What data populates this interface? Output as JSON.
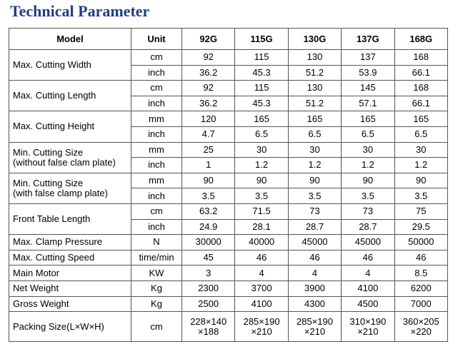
{
  "title": "Technical Parameter",
  "headers": [
    "Model",
    "Unit",
    "92G",
    "115G",
    "130G",
    "137G",
    "168G"
  ],
  "rows": [
    {
      "param": [
        "Max. Cutting Width"
      ],
      "subrows": [
        {
          "unit": "cm",
          "values": [
            "92",
            "115",
            "130",
            "137",
            "168"
          ]
        },
        {
          "unit": "inch",
          "values": [
            "36.2",
            "45.3",
            "51.2",
            "53.9",
            "66.1"
          ]
        }
      ]
    },
    {
      "param": [
        "Max. Cutting Length"
      ],
      "subrows": [
        {
          "unit": "cm",
          "values": [
            "92",
            "115",
            "130",
            "145",
            "168"
          ]
        },
        {
          "unit": "inch",
          "values": [
            "36.2",
            "45.3",
            "51.2",
            "57.1",
            "66.1"
          ]
        }
      ]
    },
    {
      "param": [
        "Max. Cutting Height"
      ],
      "subrows": [
        {
          "unit": "mm",
          "values": [
            "120",
            "165",
            "165",
            "165",
            "165"
          ]
        },
        {
          "unit": "inch",
          "values": [
            "4.7",
            "6.5",
            "6.5",
            "6.5",
            "6.5"
          ]
        }
      ]
    },
    {
      "param": [
        "Min. Cutting Size",
        "(without false clam plate)"
      ],
      "subrows": [
        {
          "unit": "mm",
          "values": [
            "25",
            "30",
            "30",
            "30",
            "30"
          ]
        },
        {
          "unit": "inch",
          "values": [
            "1",
            "1.2",
            "1.2",
            "1.2",
            "1.2"
          ]
        }
      ]
    },
    {
      "param": [
        "Min. Cutting Size",
        "(with false clamp plate)"
      ],
      "subrows": [
        {
          "unit": "mm",
          "values": [
            "90",
            "90",
            "90",
            "90",
            "90"
          ]
        },
        {
          "unit": "inch",
          "values": [
            "3.5",
            "3.5",
            "3.5",
            "3.5",
            "3.5"
          ]
        }
      ]
    },
    {
      "param": [
        "Front Table Length"
      ],
      "subrows": [
        {
          "unit": "cm",
          "values": [
            "63.2",
            "71.5",
            "73",
            "73",
            "75"
          ]
        },
        {
          "unit": "inch",
          "values": [
            "24.9",
            "28.1",
            "28.7",
            "28.7",
            "29.5"
          ]
        }
      ]
    },
    {
      "param": [
        "Max. Clamp Pressure"
      ],
      "subrows": [
        {
          "unit": "N",
          "values": [
            "30000",
            "40000",
            "45000",
            "45000",
            "50000"
          ]
        }
      ]
    },
    {
      "param": [
        "Max. Cutting Speed"
      ],
      "subrows": [
        {
          "unit": "time/min",
          "values": [
            "45",
            "46",
            "46",
            "46",
            "46"
          ]
        }
      ]
    },
    {
      "param": [
        "Main Motor"
      ],
      "subrows": [
        {
          "unit": "KW",
          "values": [
            "3",
            "4",
            "4",
            "4",
            "8.5"
          ]
        }
      ]
    },
    {
      "param": [
        "Net Weight"
      ],
      "subrows": [
        {
          "unit": "Kg",
          "values": [
            "2300",
            "3700",
            "3900",
            "4100",
            "6200"
          ]
        }
      ]
    },
    {
      "param": [
        "Gross Weight"
      ],
      "subrows": [
        {
          "unit": "Kg",
          "values": [
            "2500",
            "4100",
            "4300",
            "4500",
            "7000"
          ]
        }
      ]
    },
    {
      "param": [
        "Packing Size(L×W×H)"
      ],
      "twoLine": true,
      "subrows": [
        {
          "unit": "cm",
          "values": [
            [
              "228×140",
              "×188"
            ],
            [
              "285×190",
              "×210"
            ],
            [
              "285×190",
              "×210"
            ],
            [
              "310×190",
              "×210"
            ],
            [
              "360×205",
              "×220"
            ]
          ]
        }
      ]
    }
  ]
}
